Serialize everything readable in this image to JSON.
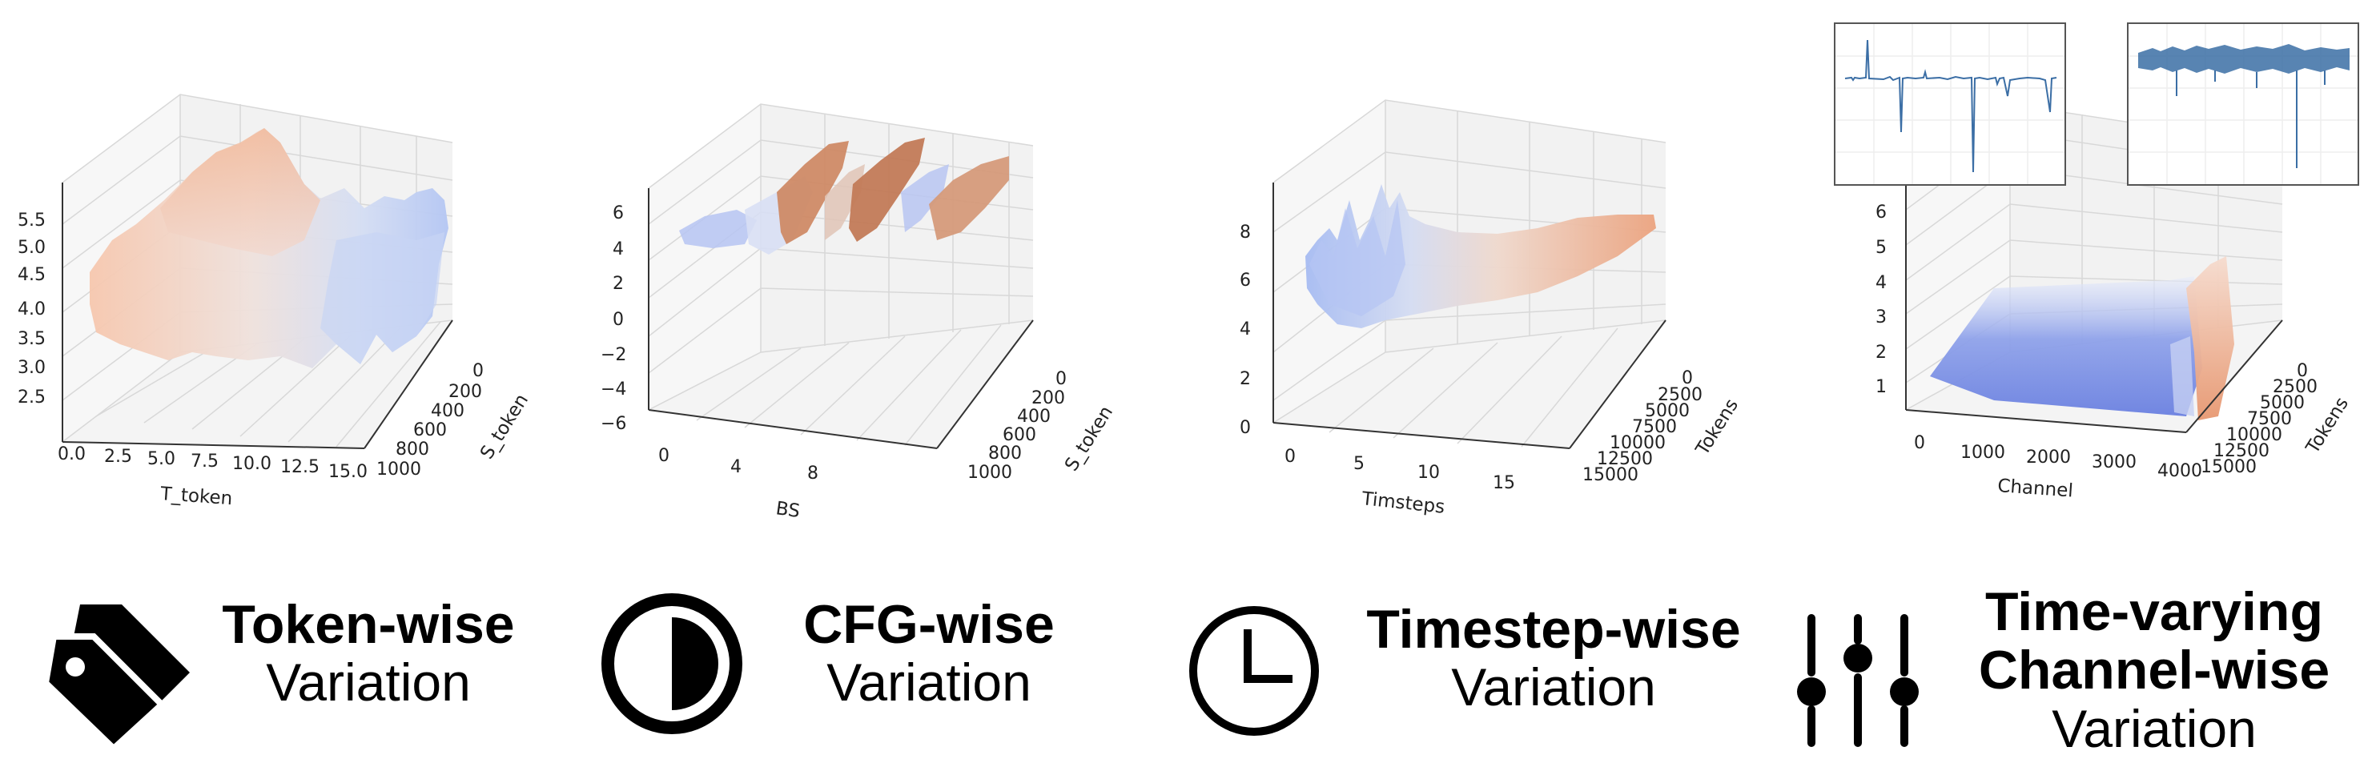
{
  "charts": [
    {
      "type": "surface3d",
      "z_ticks": [
        "2.5",
        "3.0",
        "3.5",
        "4.0",
        "4.5",
        "5.0",
        "5.5"
      ],
      "x_ticks": [
        "0.0",
        "2.5",
        "5.0",
        "7.5",
        "10.0",
        "12.5",
        "15.0"
      ],
      "y_ticks": [
        "0",
        "200",
        "400",
        "600",
        "800",
        "1000"
      ],
      "xlabel": "T_token",
      "ylabel": "S_token",
      "zlim": [
        2.5,
        5.5
      ],
      "xlim": [
        0,
        15
      ],
      "ylim": [
        0,
        1000
      ],
      "colors": {
        "low": "#b9c9f5",
        "high": "#f3b89a"
      }
    },
    {
      "type": "surface3d",
      "z_ticks": [
        "6",
        "4",
        "2",
        "0",
        "−2",
        "−4",
        "−6"
      ],
      "x_ticks": [
        "0",
        "4",
        "8"
      ],
      "y_ticks": [
        "0",
        "200",
        "400",
        "600",
        "800",
        "1000"
      ],
      "xlabel": "BS",
      "ylabel": "S_token",
      "zlim": [
        -6,
        6
      ],
      "xlim": [
        0,
        12
      ],
      "ylim": [
        0,
        1000
      ],
      "colors": {
        "low": "#9fb4f2",
        "high": "#c96b45"
      }
    },
    {
      "type": "surface3d",
      "z_ticks": [
        "8",
        "6",
        "4",
        "2",
        "0"
      ],
      "x_ticks": [
        "0",
        "5",
        "10",
        "15"
      ],
      "y_ticks": [
        "0",
        "2500",
        "5000",
        "7500",
        "10000",
        "12500",
        "15000"
      ],
      "xlabel": "Timsteps",
      "ylabel": "Tokens",
      "zlim": [
        0,
        8
      ],
      "xlim": [
        0,
        20
      ],
      "ylim": [
        0,
        15000
      ],
      "colors": {
        "low": "#9fb4f2",
        "high": "#e9a07e"
      }
    },
    {
      "type": "surface3d",
      "z_ticks": [
        "6",
        "5",
        "4",
        "3",
        "2",
        "1"
      ],
      "x_ticks": [
        "0",
        "1000",
        "2000",
        "3000",
        "4000"
      ],
      "y_ticks": [
        "0",
        "2500",
        "5000",
        "7500",
        "10000",
        "12500",
        "15000"
      ],
      "xlabel": "Channel",
      "ylabel": "Tokens",
      "zlim": [
        0,
        6
      ],
      "xlim": [
        0,
        4500
      ],
      "ylim": [
        0,
        15000
      ],
      "colors": {
        "low": "#6f86e3",
        "high": "#e9a07e"
      }
    }
  ],
  "captions": [
    {
      "bold": "Token-wise",
      "normal": "Variation",
      "icon": "price-tags-icon"
    },
    {
      "bold": "CFG-wise",
      "normal": "Variation",
      "icon": "half-circle-contrast-icon"
    },
    {
      "bold": "Timestep-wise",
      "normal": "Variation",
      "icon": "clock-icon"
    },
    {
      "bold1": "Time-varying",
      "bold2": "Channel-wise",
      "normal": "Variation",
      "icon": "sliders-icon"
    }
  ],
  "colors": {
    "line": "#3b6ea5",
    "text": "#000000"
  }
}
